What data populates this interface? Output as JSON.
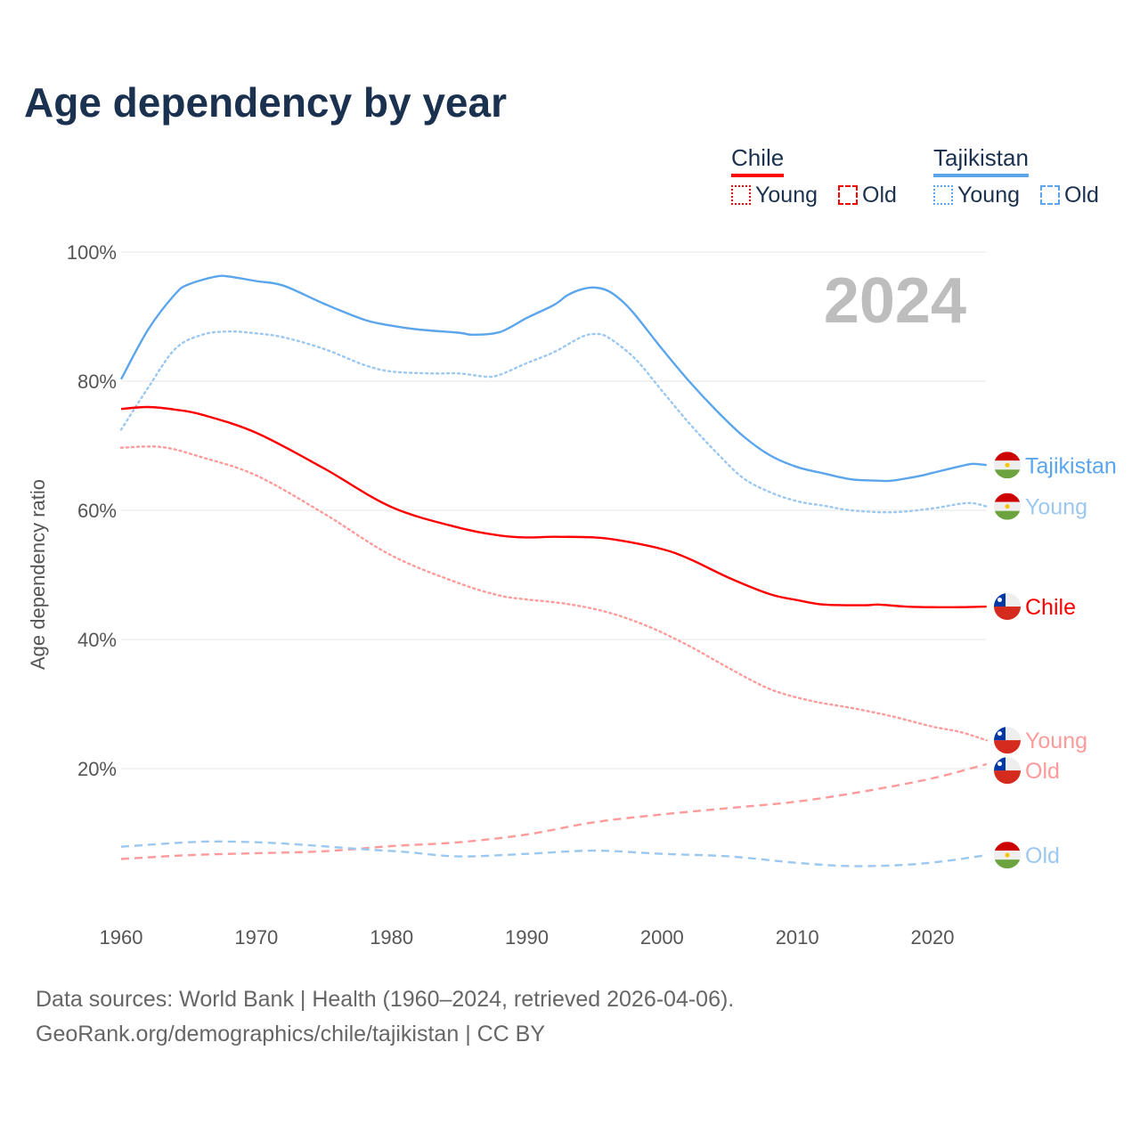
{
  "title": "Age dependency by year",
  "year_label": "2024",
  "legend": {
    "chile": "Chile",
    "tajikistan": "Tajikistan",
    "young": "Young",
    "old": "Old"
  },
  "colors": {
    "chile": "#ff0000",
    "chile_light": "#ff9a9a",
    "taj": "#5aa5ec",
    "taj_light": "#9cc8f0",
    "grid": "#e6e6e6",
    "axis_text": "#555555"
  },
  "source_line1": "Data sources: World Bank | Health (1960–2024, retrieved 2026-04-06).",
  "source_line2": "GeoRank.org/demographics/chile/tajikistan | CC BY",
  "chart_data": {
    "type": "line",
    "title": "Age dependency by year",
    "xlabel": "",
    "ylabel": "Age dependency ratio",
    "xlim": [
      1960,
      2024
    ],
    "ylim": [
      0,
      100
    ],
    "xticks": [
      1960,
      1970,
      1980,
      1990,
      2000,
      2010,
      2020
    ],
    "yticks": [
      {
        "v": 20,
        "label": "20%"
      },
      {
        "v": 40,
        "label": "40%"
      },
      {
        "v": 60,
        "label": "60%"
      },
      {
        "v": 80,
        "label": "80%"
      },
      {
        "v": 100,
        "label": "100%"
      }
    ],
    "series": [
      {
        "name": "Tajikistan",
        "label": "Tajikistan",
        "country": "tajikistan",
        "style": "solid",
        "color": "#5aa5ec",
        "points": [
          [
            1960,
            80.3
          ],
          [
            1962,
            88
          ],
          [
            1964,
            93.5
          ],
          [
            1965,
            95
          ],
          [
            1967,
            96.2
          ],
          [
            1968,
            96.2
          ],
          [
            1970,
            95.5
          ],
          [
            1972,
            94.8
          ],
          [
            1975,
            92
          ],
          [
            1978,
            89.5
          ],
          [
            1980,
            88.6
          ],
          [
            1982,
            88
          ],
          [
            1985,
            87.5
          ],
          [
            1986,
            87.2
          ],
          [
            1988,
            87.6
          ],
          [
            1990,
            89.8
          ],
          [
            1992,
            91.8
          ],
          [
            1993,
            93.3
          ],
          [
            1994,
            94.2
          ],
          [
            1995,
            94.5
          ],
          [
            1996,
            94
          ],
          [
            1997,
            92.5
          ],
          [
            1998,
            90.3
          ],
          [
            2000,
            85
          ],
          [
            2002,
            80
          ],
          [
            2004,
            75.5
          ],
          [
            2006,
            71.5
          ],
          [
            2008,
            68.5
          ],
          [
            2010,
            66.7
          ],
          [
            2012,
            65.7
          ],
          [
            2014,
            64.8
          ],
          [
            2016,
            64.6
          ],
          [
            2017,
            64.6
          ],
          [
            2019,
            65.3
          ],
          [
            2020,
            65.8
          ],
          [
            2022,
            66.8
          ],
          [
            2023,
            67.2
          ],
          [
            2024,
            67.0
          ]
        ]
      },
      {
        "name": "Tajikistan Young",
        "label": "Young",
        "country": "tajikistan",
        "style": "dotted",
        "color": "#9cc8f0",
        "points": [
          [
            1960,
            72.5
          ],
          [
            1962,
            79
          ],
          [
            1964,
            85
          ],
          [
            1966,
            87.2
          ],
          [
            1968,
            87.7
          ],
          [
            1970,
            87.4
          ],
          [
            1972,
            86.8
          ],
          [
            1975,
            85
          ],
          [
            1978,
            82.5
          ],
          [
            1980,
            81.5
          ],
          [
            1983,
            81.2
          ],
          [
            1985,
            81.2
          ],
          [
            1987,
            80.7
          ],
          [
            1988,
            81
          ],
          [
            1990,
            82.8
          ],
          [
            1992,
            84.5
          ],
          [
            1994,
            86.8
          ],
          [
            1995,
            87.3
          ],
          [
            1996,
            86.8
          ],
          [
            1998,
            83.5
          ],
          [
            2000,
            78.5
          ],
          [
            2002,
            73.5
          ],
          [
            2004,
            69
          ],
          [
            2006,
            65
          ],
          [
            2008,
            62.8
          ],
          [
            2010,
            61.4
          ],
          [
            2012,
            60.7
          ],
          [
            2014,
            60
          ],
          [
            2017,
            59.7
          ],
          [
            2020,
            60.3
          ],
          [
            2022,
            61
          ],
          [
            2023,
            61.1
          ],
          [
            2024,
            60.6
          ]
        ]
      },
      {
        "name": "Chile",
        "label": "Chile",
        "country": "chile",
        "style": "solid",
        "color": "#ff0000",
        "points": [
          [
            1960,
            75.7
          ],
          [
            1962,
            76
          ],
          [
            1964,
            75.6
          ],
          [
            1966,
            74.8
          ],
          [
            1970,
            72
          ],
          [
            1975,
            66.5
          ],
          [
            1980,
            60.5
          ],
          [
            1985,
            57.3
          ],
          [
            1988,
            56.1
          ],
          [
            1990,
            55.8
          ],
          [
            1992,
            55.9
          ],
          [
            1995,
            55.8
          ],
          [
            1997,
            55.3
          ],
          [
            2000,
            54
          ],
          [
            2002,
            52.5
          ],
          [
            2005,
            49.5
          ],
          [
            2008,
            47
          ],
          [
            2010,
            46.1
          ],
          [
            2012,
            45.4
          ],
          [
            2015,
            45.3
          ],
          [
            2016,
            45.4
          ],
          [
            2018,
            45.1
          ],
          [
            2020,
            45
          ],
          [
            2022,
            45
          ],
          [
            2024,
            45.1
          ]
        ]
      },
      {
        "name": "Chile Young",
        "label": "Young",
        "country": "chile",
        "style": "dotted",
        "color": "#ff9a9a",
        "points": [
          [
            1960,
            69.7
          ],
          [
            1963,
            69.8
          ],
          [
            1966,
            68.2
          ],
          [
            1970,
            65.4
          ],
          [
            1975,
            59.5
          ],
          [
            1980,
            53
          ],
          [
            1985,
            48.7
          ],
          [
            1988,
            46.8
          ],
          [
            1990,
            46.2
          ],
          [
            1993,
            45.5
          ],
          [
            1996,
            44.2
          ],
          [
            1999,
            42
          ],
          [
            2002,
            39
          ],
          [
            2005,
            35.5
          ],
          [
            2008,
            32.3
          ],
          [
            2011,
            30.5
          ],
          [
            2014,
            29.4
          ],
          [
            2017,
            28.1
          ],
          [
            2020,
            26.5
          ],
          [
            2022,
            25.7
          ],
          [
            2024,
            24.4
          ]
        ]
      },
      {
        "name": "Chile Old",
        "label": "Old",
        "country": "chile",
        "style": "dashed",
        "color": "#ff9a9a",
        "points": [
          [
            1960,
            6
          ],
          [
            1965,
            6.6
          ],
          [
            1970,
            6.9
          ],
          [
            1975,
            7.2
          ],
          [
            1980,
            8
          ],
          [
            1985,
            8.6
          ],
          [
            1990,
            9.8
          ],
          [
            1995,
            11.7
          ],
          [
            2000,
            12.9
          ],
          [
            2005,
            13.9
          ],
          [
            2010,
            14.9
          ],
          [
            2015,
            16.5
          ],
          [
            2020,
            18.5
          ],
          [
            2024,
            20.7
          ]
        ]
      },
      {
        "name": "Tajikistan Old",
        "label": "Old",
        "country": "tajikistan",
        "style": "dashed",
        "color": "#9cc8f0",
        "points": [
          [
            1960,
            7.9
          ],
          [
            1965,
            8.6
          ],
          [
            1968,
            8.7
          ],
          [
            1972,
            8.4
          ],
          [
            1978,
            7.5
          ],
          [
            1981,
            7.1
          ],
          [
            1985,
            6.4
          ],
          [
            1990,
            6.8
          ],
          [
            1995,
            7.3
          ],
          [
            2000,
            6.8
          ],
          [
            2005,
            6.4
          ],
          [
            2010,
            5.4
          ],
          [
            2014,
            4.9
          ],
          [
            2018,
            5.1
          ],
          [
            2021,
            5.7
          ],
          [
            2024,
            6.6
          ]
        ]
      }
    ]
  }
}
